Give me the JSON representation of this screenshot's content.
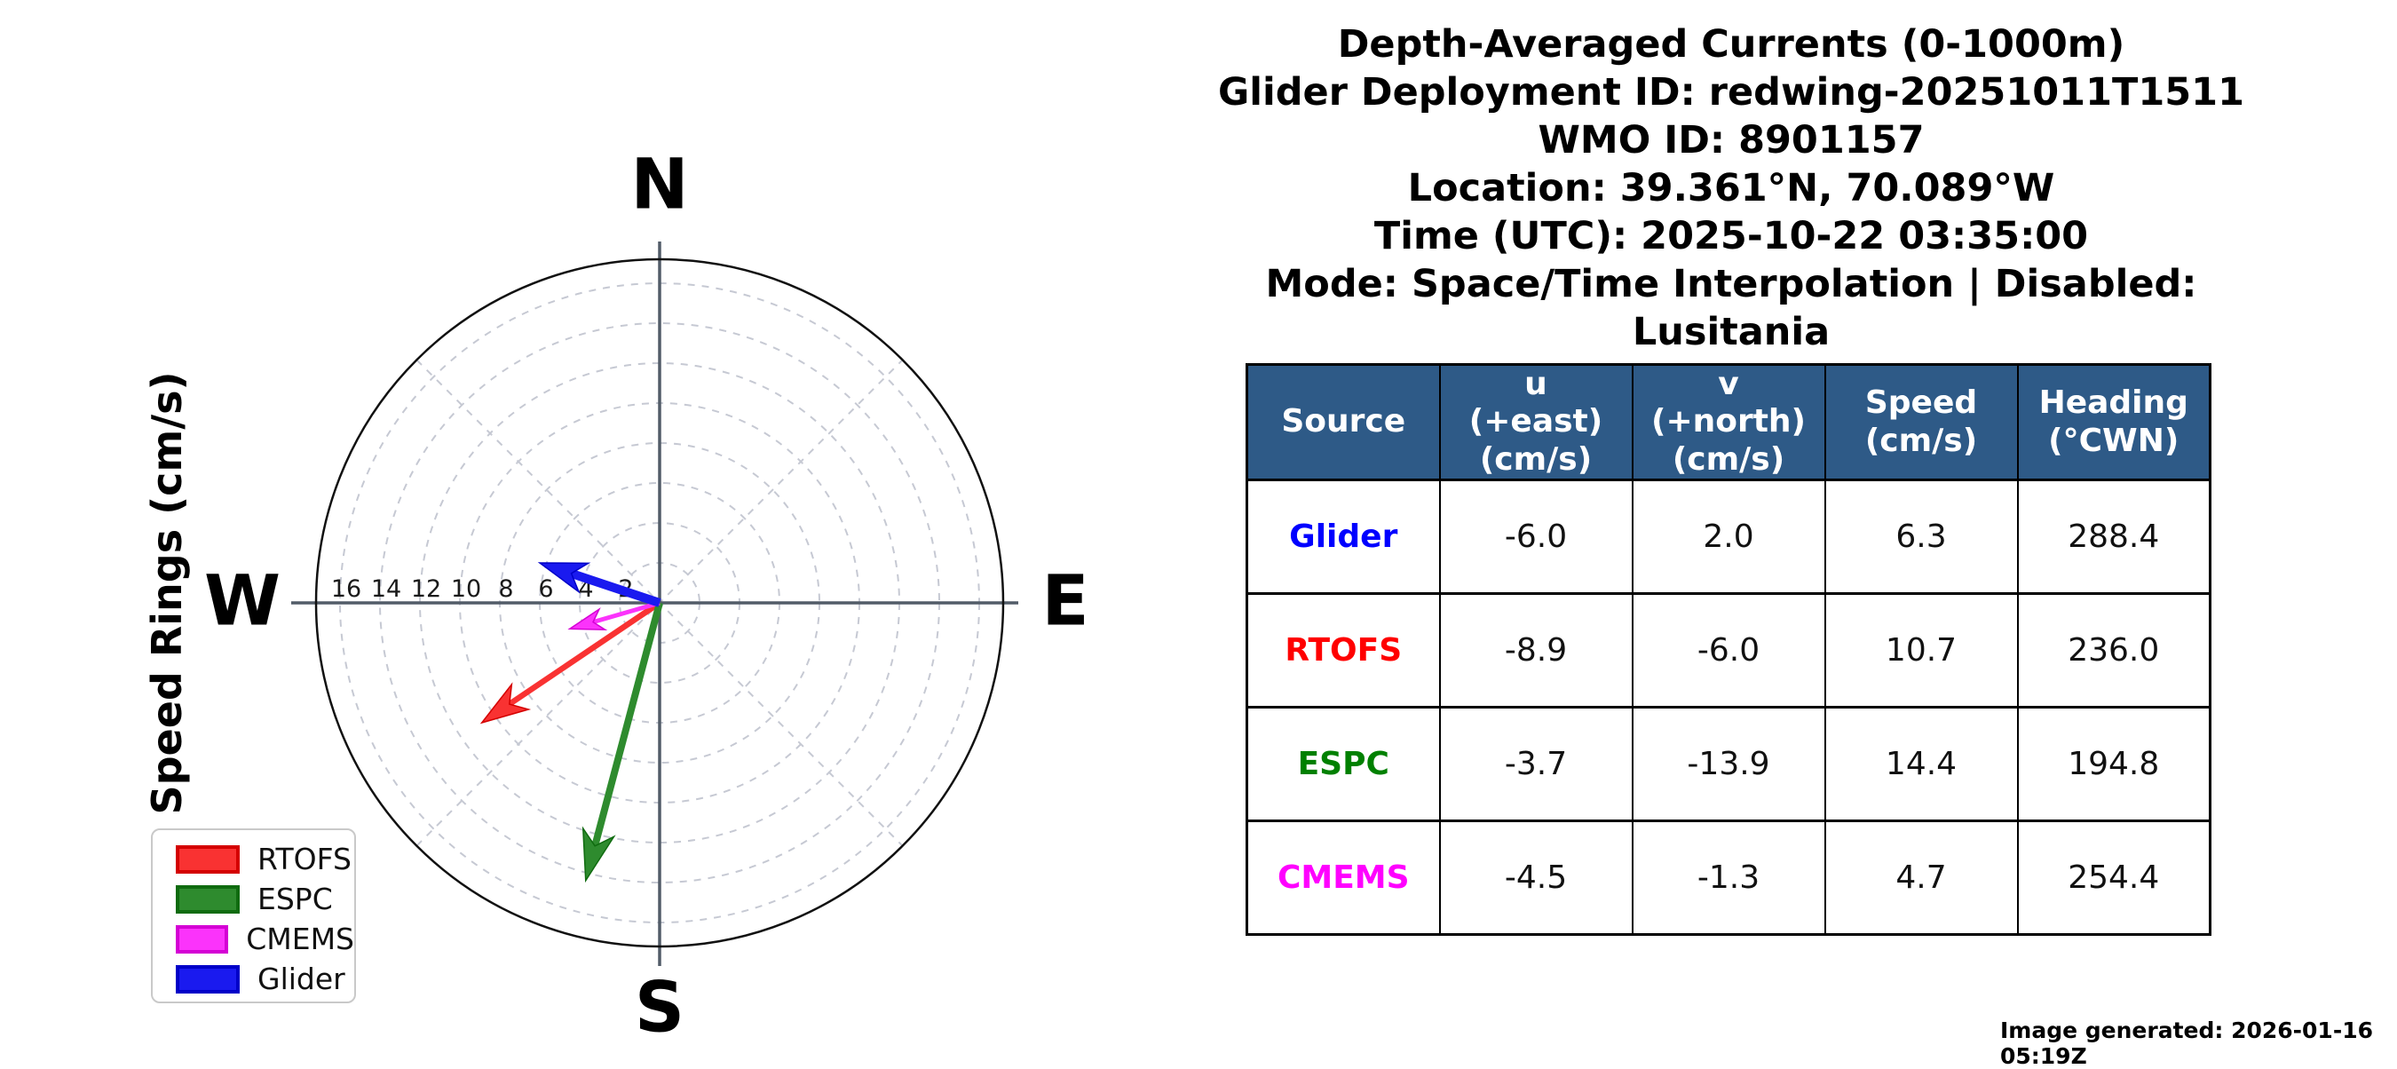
{
  "figure": {
    "title_lines": [
      "Depth-Averaged Currents (0-1000m)",
      "Glider Deployment ID: redwing-20251011T1511",
      "WMO ID: 8901157",
      "Location: 39.361°N, 70.089°W",
      "Time (UTC): 2025-10-22 03:35:00",
      "Mode: Space/Time Interpolation | Disabled: Lusitania"
    ],
    "footer": "Image generated: 2026-01-16 05:19Z"
  },
  "chart_data": {
    "type": "vector",
    "projection": "polar-compass",
    "axis_label": "Speed Rings (cm/s)",
    "ring_unit": "cm/s",
    "compass_labels": {
      "north": "N",
      "east": "E",
      "south": "S",
      "west": "W"
    },
    "ring_values": [
      2,
      4,
      6,
      8,
      10,
      12,
      14,
      16
    ],
    "ring_tick_labels": [
      "16",
      "14",
      "12",
      "10",
      "8",
      "6",
      "4",
      "2"
    ],
    "outer_ring_value": 17.2,
    "grid": {
      "rings_dashed": true,
      "diagonal_spokes_deg": [
        45,
        135,
        225,
        315
      ]
    },
    "series": [
      {
        "name": "RTOFS",
        "u": -8.9,
        "v": -6.0,
        "speed": 10.7,
        "heading": 236.0,
        "color": "#f93232",
        "edge_color": "#d40000"
      },
      {
        "name": "ESPC",
        "u": -3.7,
        "v": -13.9,
        "speed": 14.4,
        "heading": 194.8,
        "color": "#2e8b2e",
        "edge_color": "#0f6b0f"
      },
      {
        "name": "CMEMS",
        "u": -4.5,
        "v": -1.3,
        "speed": 4.7,
        "heading": 254.4,
        "color": "#fb33fb",
        "edge_color": "#d400d4"
      },
      {
        "name": "Glider",
        "u": -6.0,
        "v": 2.0,
        "speed": 6.3,
        "heading": 288.4,
        "color": "#1a1aef",
        "edge_color": "#0000c8"
      }
    ],
    "legend": {
      "position": "lower left",
      "entries": [
        "RTOFS",
        "ESPC",
        "CMEMS",
        "Glider"
      ]
    }
  },
  "table": {
    "header_bg": "#2e5a87",
    "headers": [
      "Source",
      "u\n(+east)\n(cm/s)",
      "v\n(+north)\n(cm/s)",
      "Speed\n(cm/s)",
      "Heading\n(°CWN)"
    ],
    "rows": [
      {
        "source": "Glider",
        "color": "#0000ff",
        "u": "-6.0",
        "v": "2.0",
        "speed": "6.3",
        "heading": "288.4"
      },
      {
        "source": "RTOFS",
        "color": "#ff0000",
        "u": "-8.9",
        "v": "-6.0",
        "speed": "10.7",
        "heading": "236.0"
      },
      {
        "source": "ESPC",
        "color": "#008000",
        "u": "-3.7",
        "v": "-13.9",
        "speed": "14.4",
        "heading": "194.8"
      },
      {
        "source": "CMEMS",
        "color": "#ff00ff",
        "u": "-4.5",
        "v": "-1.3",
        "speed": "4.7",
        "heading": "254.4"
      }
    ]
  }
}
